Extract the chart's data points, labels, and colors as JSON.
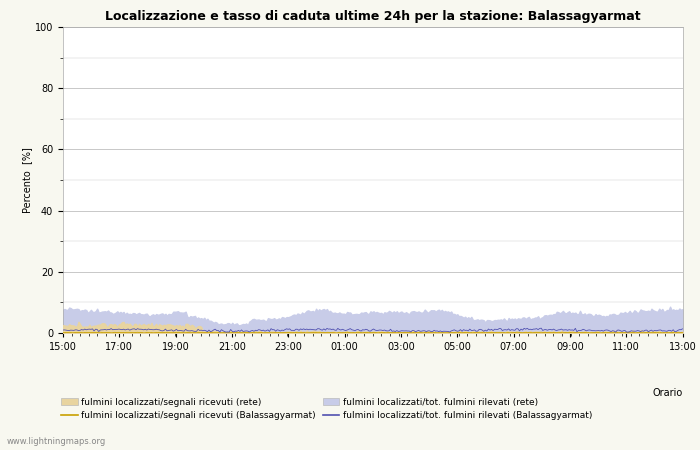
{
  "title": "Localizzazione e tasso di caduta ultime 24h per la stazione: Balassagyarmat",
  "xlabel": "Orario",
  "ylabel": "Percento  [%]",
  "ylim": [
    0,
    100
  ],
  "yticks": [
    0,
    20,
    40,
    60,
    80,
    100
  ],
  "yticks_minor": [
    10,
    30,
    50,
    70,
    90
  ],
  "x_labels": [
    "15:00",
    "17:00",
    "19:00",
    "21:00",
    "23:00",
    "01:00",
    "03:00",
    "05:00",
    "07:00",
    "09:00",
    "11:00",
    "13:00"
  ],
  "fill_rete_color": "#e8d4a0",
  "fill_balassa_color": "#c8cce8",
  "line_rete_color": "#c8a000",
  "line_balassa_color": "#5050b0",
  "background_color": "#f8f8f0",
  "plot_bg_color": "#ffffff",
  "grid_color": "#c8c8c8",
  "watermark": "www.lightningmaps.org",
  "legend": {
    "fill_rete_label": "fulmini localizzati/segnali ricevuti (rete)",
    "fill_balassa_label": "fulmini localizzati/tot. fulmini rilevati (rete)",
    "line_rete_label": "fulmini localizzati/segnali ricevuti (Balassagyarmat)",
    "line_balassa_label": "fulmini localizzati/tot. fulmini rilevati (Balassagyarmat)"
  }
}
